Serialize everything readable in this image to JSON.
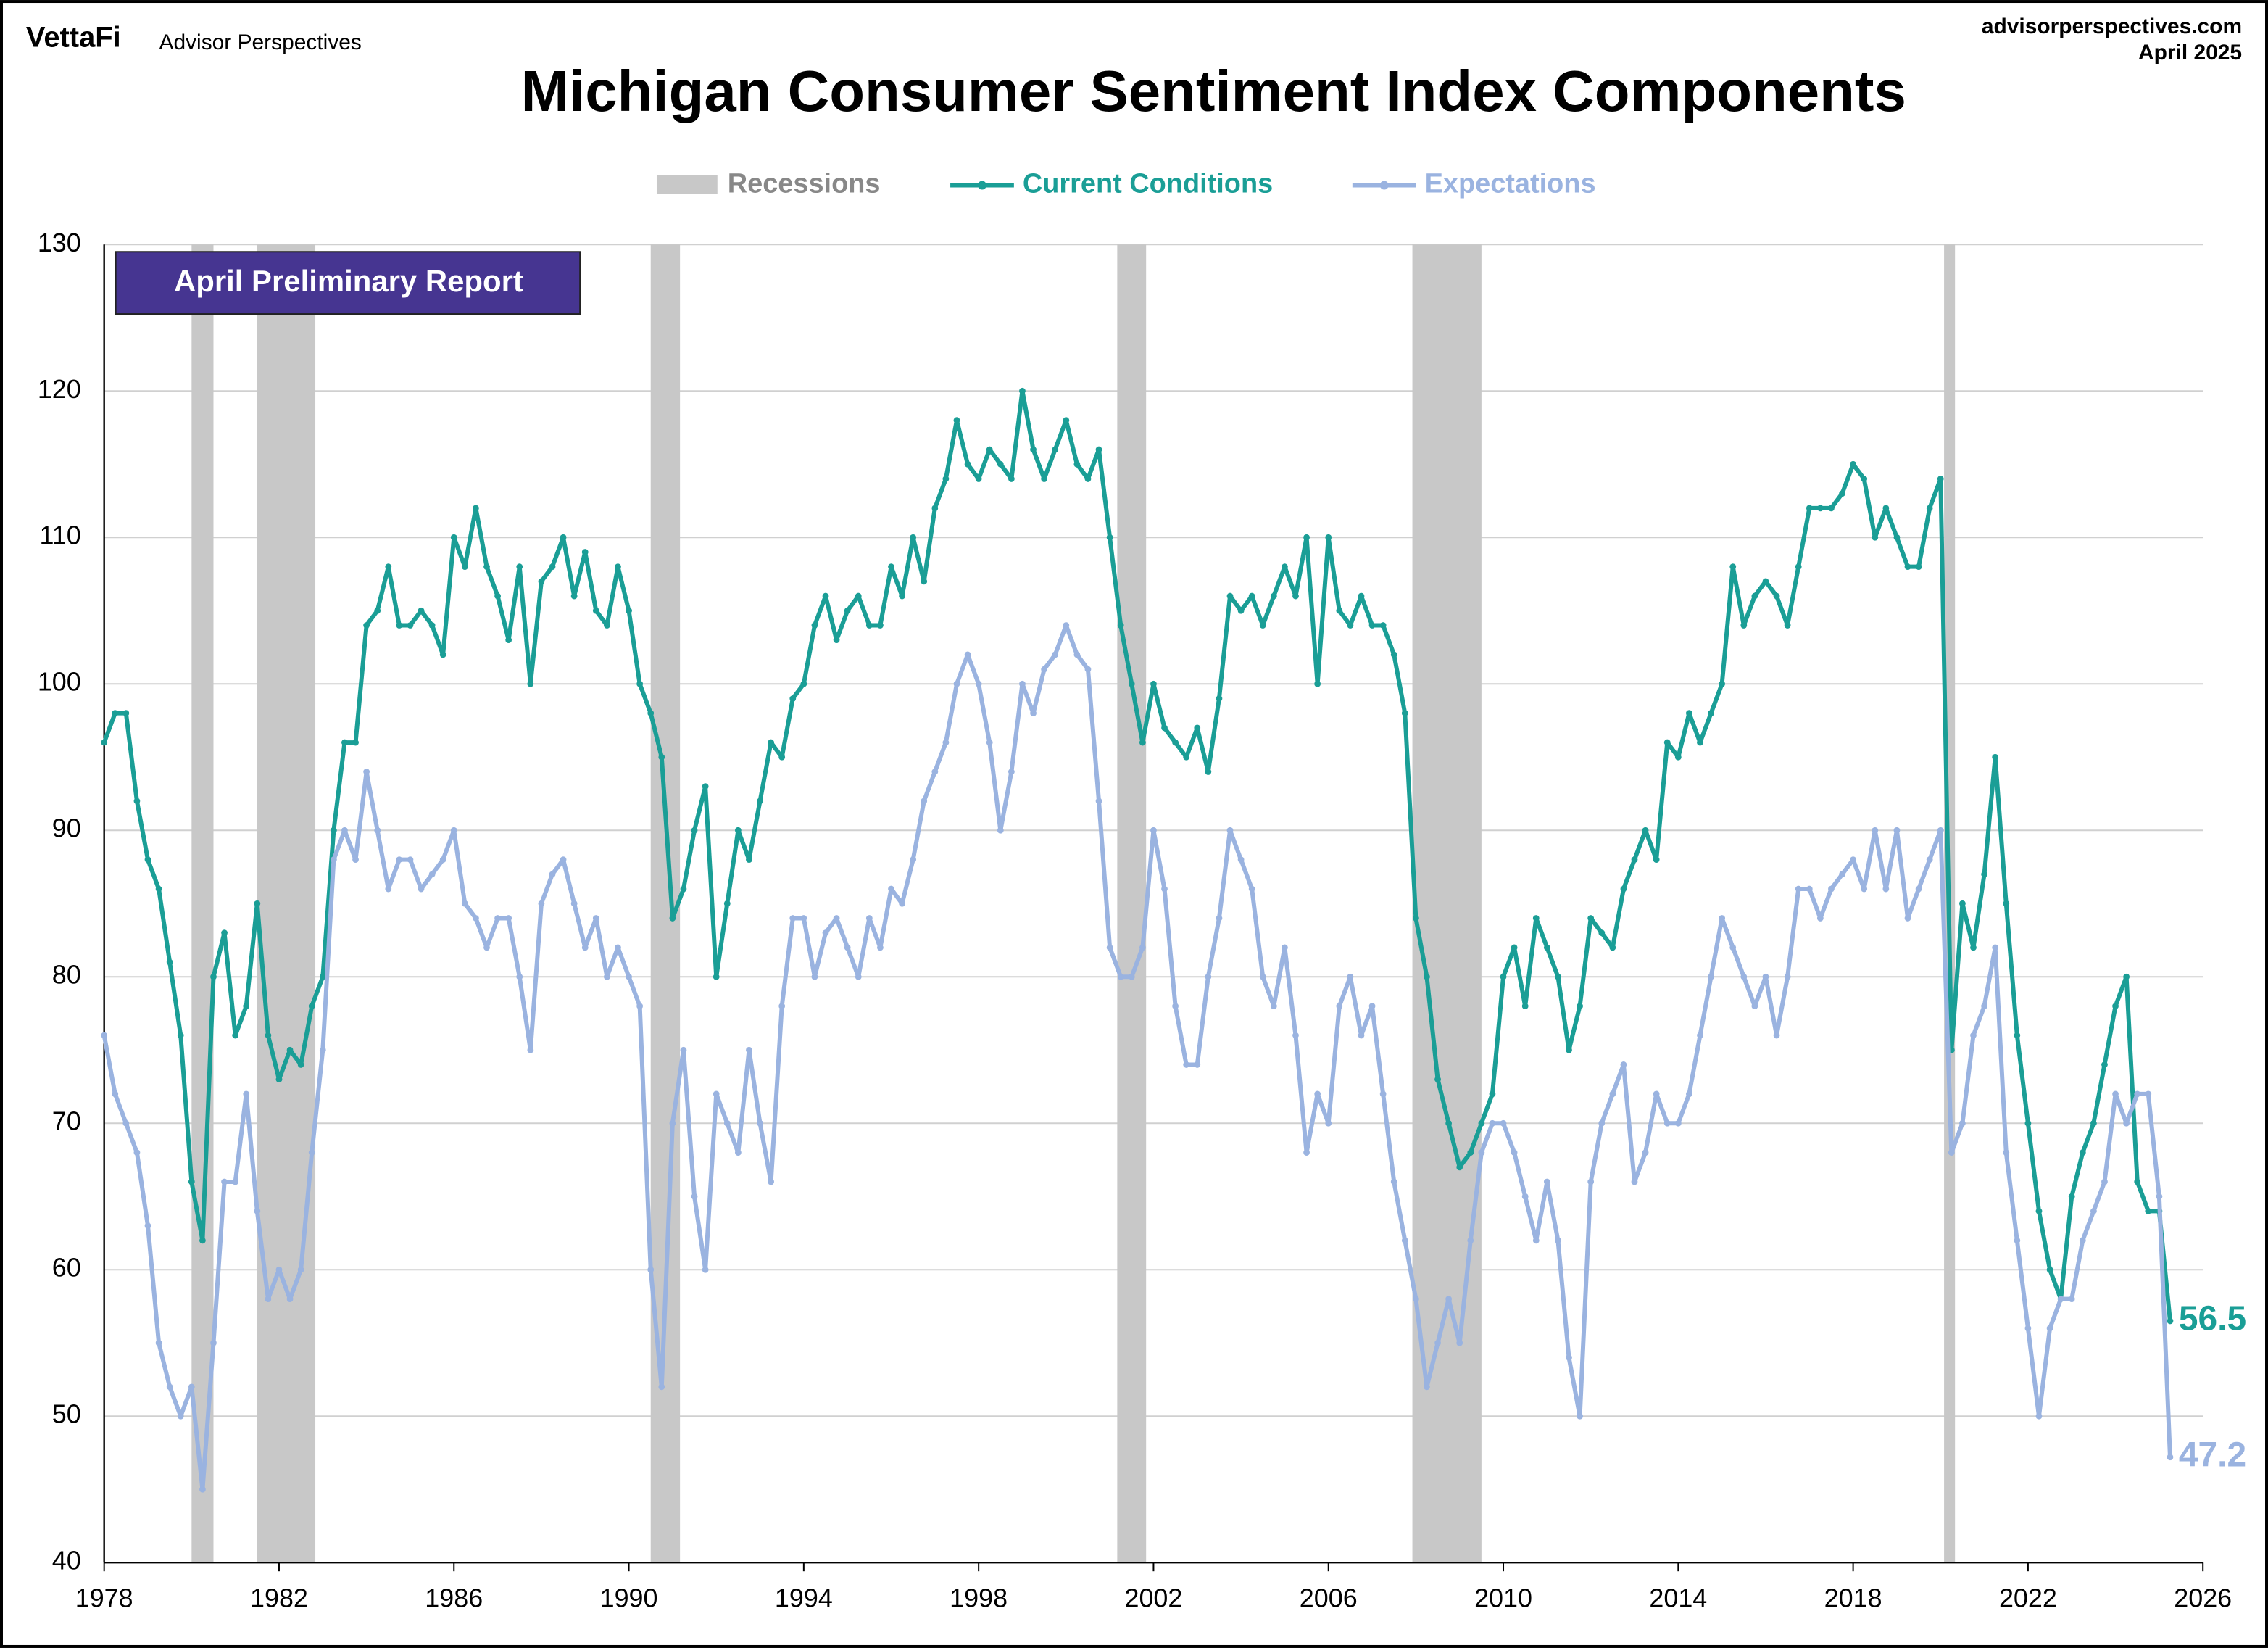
{
  "header": {
    "brand": "VettaFi",
    "brand_sub": "Advisor Perspectives",
    "site": "advisorperspectives.com",
    "date": "April 2025"
  },
  "chart_data": {
    "type": "line",
    "title": "Michigan Consumer Sentiment Index Components",
    "annotation": "April Preliminary Report",
    "recession_label": "Recessions",
    "recession_color": "#c8c8c8",
    "recessions": [
      [
        1980.0,
        1980.5
      ],
      [
        1981.5,
        1982.83
      ],
      [
        1990.5,
        1991.17
      ],
      [
        2001.17,
        2001.83
      ],
      [
        2007.92,
        2009.5
      ],
      [
        2020.08,
        2020.33
      ]
    ],
    "xlim": [
      1978,
      2026
    ],
    "xticks": [
      1978,
      1982,
      1986,
      1990,
      1994,
      1998,
      2002,
      2006,
      2010,
      2014,
      2018,
      2022,
      2026
    ],
    "ylim": [
      40,
      130
    ],
    "yticks": [
      40,
      50,
      60,
      70,
      80,
      90,
      100,
      110,
      120,
      130
    ],
    "grid": true,
    "x": [
      1978,
      1978.25,
      1978.5,
      1978.75,
      1979,
      1979.25,
      1979.5,
      1979.75,
      1980,
      1980.25,
      1980.5,
      1980.75,
      1981,
      1981.25,
      1981.5,
      1981.75,
      1982,
      1982.25,
      1982.5,
      1982.75,
      1983,
      1983.25,
      1983.5,
      1983.75,
      1984,
      1984.25,
      1984.5,
      1984.75,
      1985,
      1985.25,
      1985.5,
      1985.75,
      1986,
      1986.25,
      1986.5,
      1986.75,
      1987,
      1987.25,
      1987.5,
      1987.75,
      1988,
      1988.25,
      1988.5,
      1988.75,
      1989,
      1989.25,
      1989.5,
      1989.75,
      1990,
      1990.25,
      1990.5,
      1990.75,
      1991,
      1991.25,
      1991.5,
      1991.75,
      1992,
      1992.25,
      1992.5,
      1992.75,
      1993,
      1993.25,
      1993.5,
      1993.75,
      1994,
      1994.25,
      1994.5,
      1994.75,
      1995,
      1995.25,
      1995.5,
      1995.75,
      1996,
      1996.25,
      1996.5,
      1996.75,
      1997,
      1997.25,
      1997.5,
      1997.75,
      1998,
      1998.25,
      1998.5,
      1998.75,
      1999,
      1999.25,
      1999.5,
      1999.75,
      2000,
      2000.25,
      2000.5,
      2000.75,
      2001,
      2001.25,
      2001.5,
      2001.75,
      2002,
      2002.25,
      2002.5,
      2002.75,
      2003,
      2003.25,
      2003.5,
      2003.75,
      2004,
      2004.25,
      2004.5,
      2004.75,
      2005,
      2005.25,
      2005.5,
      2005.75,
      2006,
      2006.25,
      2006.5,
      2006.75,
      2007,
      2007.25,
      2007.5,
      2007.75,
      2008,
      2008.25,
      2008.5,
      2008.75,
      2009,
      2009.25,
      2009.5,
      2009.75,
      2010,
      2010.25,
      2010.5,
      2010.75,
      2011,
      2011.25,
      2011.5,
      2011.75,
      2012,
      2012.25,
      2012.5,
      2012.75,
      2013,
      2013.25,
      2013.5,
      2013.75,
      2014,
      2014.25,
      2014.5,
      2014.75,
      2015,
      2015.25,
      2015.5,
      2015.75,
      2016,
      2016.25,
      2016.5,
      2016.75,
      2017,
      2017.25,
      2017.5,
      2017.75,
      2018,
      2018.25,
      2018.5,
      2018.75,
      2019,
      2019.25,
      2019.5,
      2019.75,
      2020,
      2020.25,
      2020.5,
      2020.75,
      2021,
      2021.25,
      2021.5,
      2021.75,
      2022,
      2022.25,
      2022.5,
      2022.75,
      2023,
      2023.25,
      2023.5,
      2023.75,
      2024,
      2024.25,
      2024.5,
      2024.75,
      2025,
      2025.25
    ],
    "series": [
      {
        "name": "Current Conditions",
        "color": "#1a9e96",
        "values": [
          96,
          98,
          98,
          92,
          88,
          86,
          81,
          76,
          66,
          62,
          80,
          83,
          76,
          78,
          85,
          76,
          73,
          75,
          74,
          78,
          80,
          90,
          96,
          96,
          104,
          105,
          108,
          104,
          104,
          105,
          104,
          102,
          110,
          108,
          112,
          108,
          106,
          103,
          108,
          100,
          107,
          108,
          110,
          106,
          109,
          105,
          104,
          108,
          105,
          100,
          98,
          95,
          84,
          86,
          90,
          93,
          80,
          85,
          90,
          88,
          92,
          96,
          95,
          99,
          100,
          104,
          106,
          103,
          105,
          106,
          104,
          104,
          108,
          106,
          110,
          107,
          112,
          114,
          118,
          115,
          114,
          116,
          115,
          114,
          120,
          116,
          114,
          116,
          118,
          115,
          114,
          116,
          110,
          104,
          100,
          96,
          100,
          97,
          96,
          95,
          97,
          94,
          99,
          106,
          105,
          106,
          104,
          106,
          108,
          106,
          110,
          100,
          110,
          105,
          104,
          106,
          104,
          104,
          102,
          98,
          84,
          80,
          73,
          70,
          67,
          68,
          70,
          72,
          80,
          82,
          78,
          84,
          82,
          80,
          75,
          78,
          84,
          83,
          82,
          86,
          88,
          90,
          88,
          96,
          95,
          98,
          96,
          98,
          100,
          108,
          104,
          106,
          107,
          106,
          104,
          108,
          112,
          112,
          112,
          113,
          115,
          114,
          110,
          112,
          110,
          108,
          108,
          112,
          114,
          75,
          85,
          82,
          87,
          95,
          85,
          76,
          70,
          64,
          60,
          58,
          65,
          68,
          70,
          74,
          78,
          80,
          66,
          64,
          64,
          56.5
        ]
      },
      {
        "name": "Expectations",
        "color": "#9ab3e0",
        "values": [
          76,
          72,
          70,
          68,
          63,
          55,
          52,
          50,
          52,
          45,
          55,
          66,
          66,
          72,
          64,
          58,
          60,
          58,
          60,
          68,
          75,
          88,
          90,
          88,
          94,
          90,
          86,
          88,
          88,
          86,
          87,
          88,
          90,
          85,
          84,
          82,
          84,
          84,
          80,
          75,
          85,
          87,
          88,
          85,
          82,
          84,
          80,
          82,
          80,
          78,
          60,
          52,
          70,
          75,
          65,
          60,
          72,
          70,
          68,
          75,
          70,
          66,
          78,
          84,
          84,
          80,
          83,
          84,
          82,
          80,
          84,
          82,
          86,
          85,
          88,
          92,
          94,
          96,
          100,
          102,
          100,
          96,
          90,
          94,
          100,
          98,
          101,
          102,
          104,
          102,
          101,
          92,
          82,
          80,
          80,
          82,
          90,
          86,
          78,
          74,
          74,
          80,
          84,
          90,
          88,
          86,
          80,
          78,
          82,
          76,
          68,
          72,
          70,
          78,
          80,
          76,
          78,
          72,
          66,
          62,
          58,
          52,
          55,
          58,
          55,
          62,
          68,
          70,
          70,
          68,
          65,
          62,
          66,
          62,
          54,
          50,
          66,
          70,
          72,
          74,
          66,
          68,
          72,
          70,
          70,
          72,
          76,
          80,
          84,
          82,
          80,
          78,
          80,
          76,
          80,
          86,
          86,
          84,
          86,
          87,
          88,
          86,
          90,
          86,
          90,
          84,
          86,
          88,
          90,
          68,
          70,
          76,
          78,
          82,
          68,
          62,
          56,
          50,
          56,
          58,
          58,
          62,
          64,
          66,
          72,
          70,
          72,
          72,
          65,
          47.2
        ]
      }
    ]
  }
}
